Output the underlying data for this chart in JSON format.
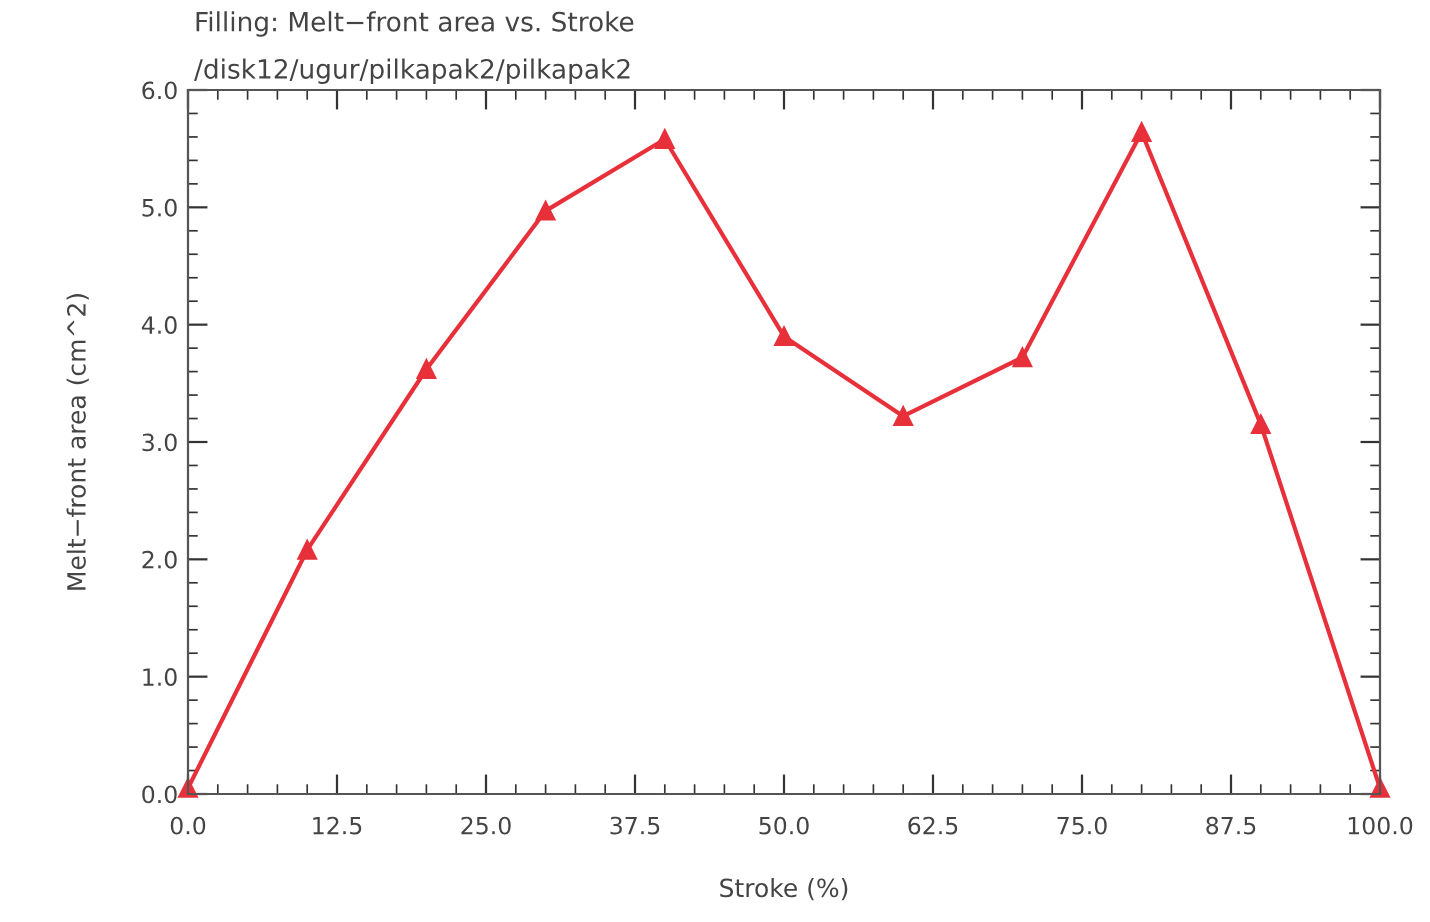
{
  "chart_data": {
    "type": "line",
    "title": "Filling: Melt−front area vs. Stroke",
    "subtitle": "/disk12/ugur/pilkapak2/pilkapak2",
    "xlabel": "Stroke (%)",
    "ylabel": "Melt−front area (cm^2)",
    "x": [
      0,
      10,
      20,
      30,
      40,
      50,
      60,
      70,
      80,
      90,
      100
    ],
    "series": [
      {
        "color": "#e8303a",
        "values": [
          0.05,
          2.08,
          3.62,
          4.97,
          5.58,
          3.9,
          3.22,
          3.72,
          5.64,
          3.15,
          0.05
        ]
      }
    ],
    "xlim": [
      0,
      100
    ],
    "ylim": [
      0,
      6
    ],
    "xticks": [
      {
        "value": 0,
        "label": "0.0"
      },
      12.5,
      {
        "value": 25,
        "label": "25.0"
      },
      37.5,
      {
        "value": 50,
        "label": "50.0"
      },
      62.5,
      {
        "value": 75,
        "label": "75.0"
      },
      87.5,
      {
        "value": 100,
        "label": "100.0"
      }
    ],
    "yticks": [
      {
        "value": 0,
        "label": "0.0"
      },
      {
        "value": 1,
        "label": "1.0"
      },
      {
        "value": 2,
        "label": "2.0"
      },
      {
        "value": 3,
        "label": "3.0"
      },
      {
        "value": 4,
        "label": "4.0"
      },
      {
        "value": 5,
        "label": "5.0"
      },
      {
        "value": 6,
        "label": "6.0"
      }
    ],
    "grid": false,
    "legend": false,
    "marker": "triangle",
    "line_style": "solid"
  }
}
